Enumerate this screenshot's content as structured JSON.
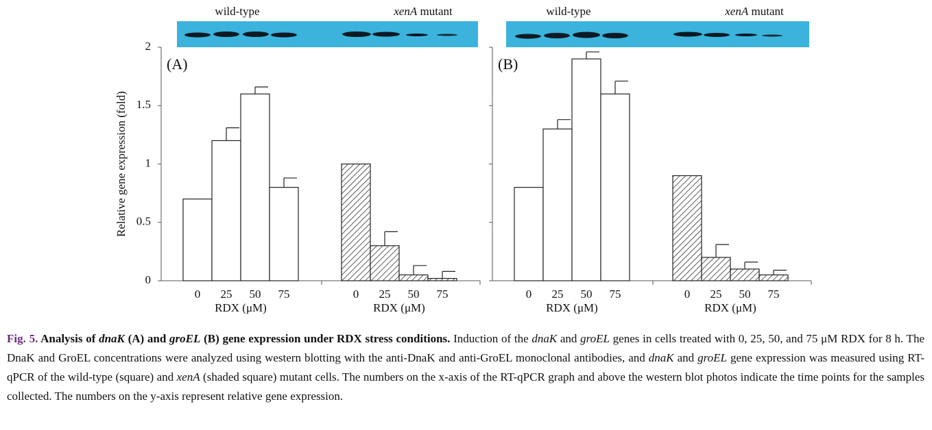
{
  "chart_data": [
    {
      "type": "bar",
      "panel_label": "(A)",
      "y_label": "Relative gene expression (fold)",
      "x_label": "RDX (μM)",
      "categories": [
        "0",
        "25",
        "50",
        "75"
      ],
      "series": [
        {
          "name": "wild-type",
          "color": "#ffffff",
          "values": [
            0.7,
            1.2,
            1.6,
            0.8
          ],
          "errors": [
            null,
            0.11,
            0.06,
            0.08
          ]
        },
        {
          "name": "xenA mutant",
          "color": "#ffffff",
          "pattern": "hatch",
          "values": [
            1.0,
            0.3,
            0.05,
            0.02
          ],
          "errors": [
            null,
            0.12,
            0.08,
            0.06
          ]
        }
      ],
      "ylim": [
        0,
        2
      ],
      "yticks": [
        0,
        0.5,
        1,
        1.5,
        2
      ]
    },
    {
      "type": "bar",
      "panel_label": "(B)",
      "x_label": "RDX (μM)",
      "categories": [
        "0",
        "25",
        "50",
        "75"
      ],
      "series": [
        {
          "name": "wild-type",
          "color": "#ffffff",
          "values": [
            0.8,
            1.3,
            1.9,
            1.6
          ],
          "errors": [
            null,
            0.08,
            0.06,
            0.11
          ]
        },
        {
          "name": "xenA mutant",
          "color": "#ffffff",
          "pattern": "hatch",
          "values": [
            0.9,
            0.2,
            0.1,
            0.05
          ],
          "errors": [
            null,
            0.11,
            0.06,
            0.04
          ]
        }
      ],
      "ylim": [
        0,
        2
      ],
      "yticks": [
        0,
        0.5,
        1,
        1.5,
        2
      ]
    }
  ],
  "caption": {
    "runs": [
      "Fig. 5.",
      " Analysis of ",
      "dnaK",
      " (A) and ",
      "groEL",
      " (B) gene expression under RDX stress conditions.",
      " Induction of the ",
      "dnaK",
      " and ",
      "groEL",
      " genes in cells treated with 0, 25, 50, and 75 μM RDX for 8 h. The DnaK and GroEL concentrations were analyzed using western blotting with the anti-DnaK and anti-GroEL monoclonal antibodies, and ",
      "dnaK",
      " and ",
      "groEL",
      " gene expression was measured using RT-qPCR of the wild-type (square) and ",
      "xenA",
      " (shaded square) mutant cells. The numbers on the x-axis of the RT-qPCR graph and above the western blot photos indicate the time points for the samples collected. The numbers on the y-axis represent relative gene expression."
    ]
  }
}
